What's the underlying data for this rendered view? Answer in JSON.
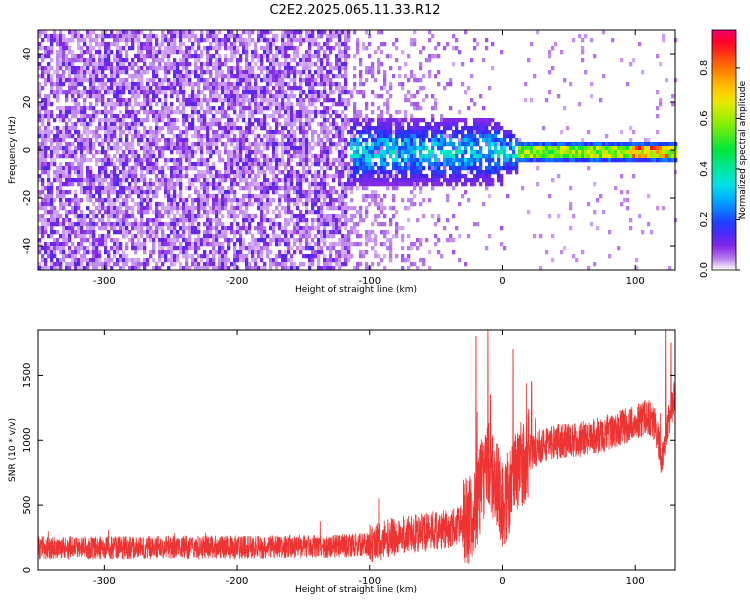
{
  "title": "C2E2.2025.065.11.33.R12",
  "chart_data": [
    {
      "type": "heatmap",
      "title": "C2E2.2025.065.11.33.R12",
      "xlabel": "Height of straight line (km)",
      "ylabel": "Frequency (Hz)",
      "xlim": [
        -350,
        130
      ],
      "ylim": [
        -50,
        50
      ],
      "xticks": [
        "-300",
        "-200",
        "-100",
        "0",
        "100"
      ],
      "xtick_values": [
        -300,
        -200,
        -100,
        0,
        100
      ],
      "yticks": [
        "40",
        "20",
        "0",
        "-20",
        "-40"
      ],
      "ytick_values": [
        40,
        20,
        0,
        -20,
        -40
      ],
      "colorbar": {
        "label": "Normalized spectral amplitude",
        "range": [
          0,
          0.95
        ],
        "ticks": [
          "0.0",
          "0.2",
          "0.4",
          "0.6",
          "0.8"
        ],
        "tick_values": [
          0.0,
          0.2,
          0.4,
          0.6,
          0.8
        ],
        "colormap": "rainbow",
        "position": "right"
      },
      "regions": [
        {
          "x_range": [
            -350,
            -115
          ],
          "freq_range": [
            -50,
            50
          ],
          "amplitude": 0.05,
          "description_level": "broadband noise"
        },
        {
          "x_range": [
            -115,
            -80
          ],
          "freq_range": [
            -50,
            50
          ],
          "amplitude": 0.03,
          "description_level": "fading noise"
        },
        {
          "x_range": [
            -105,
            10
          ],
          "freq_range": [
            -15,
            15
          ],
          "amplitude": 0.18,
          "description_level": "spread signal"
        },
        {
          "x_range": [
            10,
            130
          ],
          "freq_range": [
            -2.5,
            2.5
          ],
          "amplitude": 0.6,
          "description_level": "narrow carrier near 0 Hz"
        }
      ]
    },
    {
      "type": "line",
      "xlabel": "Height of straight line (km)",
      "ylabel": "SNR (10 * v/v)",
      "xlim": [
        -350,
        130
      ],
      "ylim": [
        0,
        1850
      ],
      "xticks": [
        "-300",
        "-200",
        "-100",
        "0",
        "100"
      ],
      "xtick_values": [
        -300,
        -200,
        -100,
        0,
        100
      ],
      "yticks": [
        "0",
        "500",
        "1000",
        "1500"
      ],
      "ytick_values": [
        0,
        500,
        1000,
        1500
      ],
      "color": "#ee3333",
      "series": [
        {
          "x": [
            -350,
            -300,
            -250,
            -200,
            -150,
            -120,
            -100,
            -80,
            -60,
            -40,
            -25,
            -20,
            -15,
            -10,
            -5,
            0,
            5,
            10,
            20,
            30,
            40,
            50,
            60,
            70,
            80,
            90,
            100,
            110,
            115,
            120,
            125,
            130
          ],
          "y": [
            170,
            170,
            175,
            175,
            180,
            185,
            200,
            260,
            290,
            320,
            380,
            500,
            700,
            800,
            660,
            520,
            580,
            760,
            900,
            960,
            990,
            1000,
            1010,
            1030,
            1060,
            1100,
            1140,
            1180,
            1120,
            850,
            1150,
            1350
          ],
          "noise": [
            {
              "x_range": [
                -350,
                -100
              ],
              "amplitude": 90
            },
            {
              "x_range": [
                -100,
                -30
              ],
              "amplitude": 150
            },
            {
              "x_range": [
                -30,
                20
              ],
              "amplitude": 350
            },
            {
              "x_range": [
                20,
                130
              ],
              "amplitude": 140
            }
          ],
          "peaks": [
            {
              "x": -20,
              "y": 1800
            },
            {
              "x": -11,
              "y": 1850
            },
            {
              "x": -9,
              "y": 1350
            },
            {
              "x": 8,
              "y": 1700
            },
            {
              "x": 22,
              "y": 1450
            },
            {
              "x": 123,
              "y": 1850
            },
            {
              "x": 127,
              "y": 1750
            }
          ]
        }
      ]
    }
  ]
}
